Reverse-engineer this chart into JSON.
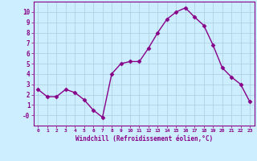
{
  "x": [
    0,
    1,
    2,
    3,
    4,
    5,
    6,
    7,
    8,
    9,
    10,
    11,
    12,
    13,
    14,
    15,
    16,
    17,
    18,
    19,
    20,
    21,
    22,
    23
  ],
  "y": [
    2.5,
    1.8,
    1.8,
    2.5,
    2.2,
    1.5,
    0.5,
    -0.2,
    4.0,
    5.0,
    5.2,
    5.2,
    6.5,
    8.0,
    9.3,
    10.0,
    10.4,
    9.5,
    8.7,
    6.8,
    4.6,
    3.7,
    3.0,
    1.3
  ],
  "line_color": "#880088",
  "marker": "D",
  "marker_size": 2.5,
  "bg_color": "#cceeff",
  "grid_color": "#aaccdd",
  "xlabel": "Windchill (Refroidissement éolien,°C)",
  "xlabel_color": "#880088",
  "tick_color": "#880088",
  "ylim": [
    -1,
    11
  ],
  "xlim": [
    -0.5,
    23.5
  ],
  "yticks": [
    0,
    1,
    2,
    3,
    4,
    5,
    6,
    7,
    8,
    9,
    10
  ],
  "ytick_labels": [
    "-0",
    "1",
    "2",
    "3",
    "4",
    "5",
    "6",
    "7",
    "8",
    "9",
    "10"
  ],
  "xticks": [
    0,
    1,
    2,
    3,
    4,
    5,
    6,
    7,
    8,
    9,
    10,
    11,
    12,
    13,
    14,
    15,
    16,
    17,
    18,
    19,
    20,
    21,
    22,
    23
  ],
  "xtick_labels": [
    "0",
    "1",
    "2",
    "3",
    "4",
    "5",
    "6",
    "7",
    "8",
    "9",
    "10",
    "11",
    "12",
    "13",
    "14",
    "15",
    "16",
    "17",
    "18",
    "19",
    "20",
    "21",
    "22",
    "23"
  ]
}
